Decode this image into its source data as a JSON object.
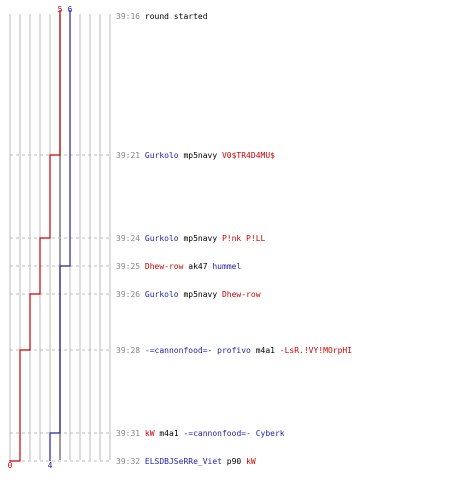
{
  "chart_data": {
    "type": "line",
    "title": "",
    "xlabel": "",
    "ylabel": "",
    "colors": {
      "team_blue": "#2222aa",
      "team_red": "#cc0000",
      "time": "#888888",
      "grid": "#bbbbbb",
      "row_line": "#bbbbbb",
      "neutral_text": "#000000"
    },
    "axis": {
      "x_min": 0,
      "x_max": 10,
      "ticks": [
        0,
        1,
        2,
        3,
        4,
        5,
        6,
        7,
        8,
        9,
        10
      ],
      "center_value": 5
    },
    "start_label": {
      "blue": "6",
      "red": "5"
    },
    "end_label": {
      "blue": "4",
      "red": "0"
    },
    "events": [
      {
        "time": "39:16",
        "blue": 6,
        "red": 5,
        "parts": [
          {
            "text": "round started",
            "team": "neutral"
          }
        ]
      },
      {
        "time": "39:21",
        "blue": 6,
        "red": 4,
        "parts": [
          {
            "text": "Gurkolo",
            "team": "blue"
          },
          {
            "text": "mp5navy",
            "team": "neutral"
          },
          {
            "text": "V0$TR4D4MU$",
            "team": "red"
          }
        ]
      },
      {
        "time": "39:24",
        "blue": 6,
        "red": 3,
        "parts": [
          {
            "text": "Gurkolo",
            "team": "blue"
          },
          {
            "text": "mp5navy",
            "team": "neutral"
          },
          {
            "text": "P!nk P!LL",
            "team": "red"
          }
        ]
      },
      {
        "time": "39:25",
        "blue": 5,
        "red": 3,
        "parts": [
          {
            "text": "Dhew-row",
            "team": "red"
          },
          {
            "text": "ak47",
            "team": "neutral"
          },
          {
            "text": "hummel",
            "team": "blue"
          }
        ]
      },
      {
        "time": "39:26",
        "blue": 5,
        "red": 2,
        "parts": [
          {
            "text": "Gurkolo",
            "team": "blue"
          },
          {
            "text": "mp5navy",
            "team": "neutral"
          },
          {
            "text": "Dhew-row",
            "team": "red"
          }
        ]
      },
      {
        "time": "39:28",
        "blue": 5,
        "red": 1,
        "parts": [
          {
            "text": "-=cannonfood=-",
            "team": "blue"
          },
          {
            "text": "profivo",
            "team": "blue"
          },
          {
            "text": "m4a1",
            "team": "neutral"
          },
          {
            "text": "-LsR.!VY!MOrpHI",
            "team": "red"
          }
        ]
      },
      {
        "time": "39:31",
        "blue": 4,
        "red": 1,
        "parts": [
          {
            "text": "kW",
            "team": "red"
          },
          {
            "text": "m4a1",
            "team": "neutral"
          },
          {
            "text": "-=cannonfood=-",
            "team": "blue"
          },
          {
            "text": "Cyberk",
            "team": "blue"
          }
        ]
      },
      {
        "time": "39:32",
        "blue": 4,
        "red": 0,
        "parts": [
          {
            "text": "ELSDBJSeRRe_Viet",
            "team": "blue"
          },
          {
            "text": "p90",
            "team": "neutral"
          },
          {
            "text": "kW",
            "team": "red"
          }
        ]
      }
    ]
  }
}
